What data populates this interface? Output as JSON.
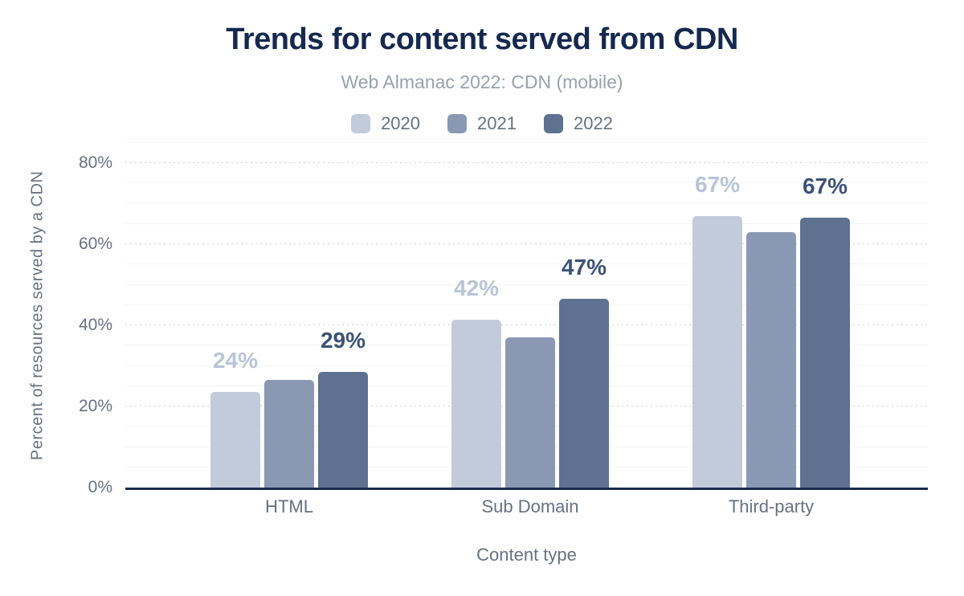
{
  "header": {
    "title": "Trends for content served from CDN",
    "subtitle": "Web Almanac 2022: CDN (mobile)"
  },
  "chart_data": {
    "type": "bar",
    "title": "Trends for content served from CDN",
    "subtitle": "Web Almanac 2022: CDN (mobile)",
    "categories": [
      "HTML",
      "Sub Domain",
      "Third-party"
    ],
    "series": [
      {
        "name": "2020",
        "color": "#c2cbda",
        "values": [
          23.5,
          41.5,
          67
        ],
        "data_labels": [
          "24%",
          "42%",
          "67%"
        ],
        "show_labels": true,
        "label_color": "#b9c4d7"
      },
      {
        "name": "2021",
        "color": "#8b98b3",
        "values": [
          26.5,
          37,
          63
        ],
        "data_labels": [],
        "show_labels": false,
        "label_color": ""
      },
      {
        "name": "2022",
        "color": "#5e7190",
        "values": [
          28.5,
          46.5,
          66.5
        ],
        "data_labels": [
          "29%",
          "47%",
          "67%"
        ],
        "show_labels": true,
        "label_color": "#3c5278"
      }
    ],
    "xlabel": "Content type",
    "ylabel": "Percent of resources served by a CDN",
    "ylim": [
      0,
      85
    ],
    "yticks": [
      {
        "value": 0,
        "label": "0%"
      },
      {
        "value": 20,
        "label": "20%"
      },
      {
        "value": 40,
        "label": "40%"
      },
      {
        "value": 60,
        "label": "60%"
      },
      {
        "value": 80,
        "label": "80%"
      }
    ],
    "grid": {
      "major_step": 20,
      "minor_step": 5,
      "major_style": "dotted",
      "minor_style": "solid"
    },
    "legend_position": "top",
    "colors": {
      "axis_line": "#1c2b4a",
      "major_gridline": "#cdd0d8",
      "minor_gridline": "#f3f4f6",
      "tick_text": "#687080",
      "title_text": "#15294e",
      "subtitle_text": "#9aa1ad"
    }
  }
}
